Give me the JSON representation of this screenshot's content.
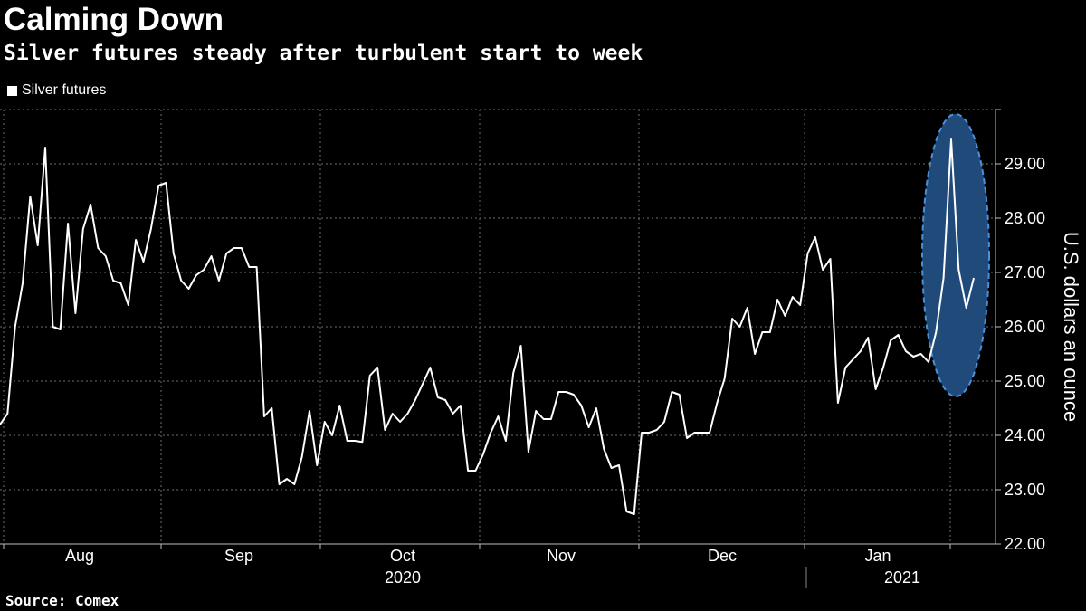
{
  "header": {
    "title": "Calming Down",
    "subtitle": "Silver futures steady after turbulent start to week"
  },
  "legend": {
    "label": "Silver futures",
    "swatch_color": "#ffffff"
  },
  "footer": {
    "source": "Source: Comex"
  },
  "colors": {
    "background": "#000000",
    "line": "#ffffff",
    "grid": "#6e6e6e",
    "highlight_fill": "#1f4a7a",
    "highlight_stroke": "#4a90d9"
  },
  "chart_data": {
    "type": "line",
    "series": [
      {
        "name": "Silver futures",
        "values": [
          24.2,
          24.4,
          26.0,
          26.8,
          28.4,
          27.5,
          29.3,
          26.0,
          25.95,
          27.9,
          26.25,
          27.8,
          28.25,
          27.45,
          27.3,
          26.85,
          26.8,
          26.4,
          27.6,
          27.2,
          27.8,
          28.6,
          28.65,
          27.35,
          26.85,
          26.7,
          26.95,
          27.05,
          27.3,
          26.85,
          27.35,
          27.45,
          27.45,
          27.1,
          27.1,
          24.35,
          24.5,
          23.1,
          23.2,
          23.1,
          23.6,
          24.45,
          23.45,
          24.25,
          24.0,
          24.55,
          23.9,
          23.9,
          23.88,
          25.1,
          25.25,
          24.1,
          24.4,
          24.25,
          24.4,
          24.65,
          24.95,
          25.25,
          24.7,
          24.65,
          24.4,
          24.55,
          23.35,
          23.35,
          23.65,
          24.05,
          24.35,
          23.9,
          25.15,
          25.65,
          23.7,
          24.45,
          24.3,
          24.3,
          24.8,
          24.8,
          24.75,
          24.55,
          24.15,
          24.5,
          23.75,
          23.4,
          23.45,
          22.6,
          22.55,
          24.05,
          24.05,
          24.1,
          24.25,
          24.8,
          24.75,
          23.95,
          24.05,
          24.05,
          24.05,
          24.6,
          25.05,
          26.15,
          26.0,
          26.35,
          25.5,
          25.9,
          25.9,
          26.5,
          26.2,
          26.55,
          26.4,
          27.35,
          27.65,
          27.05,
          27.25,
          24.6,
          25.25,
          25.4,
          25.55,
          25.8,
          24.85,
          25.25,
          25.75,
          25.85,
          25.55,
          25.45,
          25.5,
          25.35,
          25.9,
          26.9,
          29.45,
          27.05,
          26.35,
          26.9
        ]
      }
    ],
    "x_axis": {
      "months": [
        "Aug",
        "Sep",
        "Oct",
        "Nov",
        "Dec",
        "Jan"
      ],
      "years": [
        "2020",
        "2021"
      ]
    },
    "y_axis": {
      "label": "U.S. dollars an ounce",
      "ticks": [
        "22.00",
        "23.00",
        "24.00",
        "25.00",
        "26.00",
        "27.00",
        "28.00",
        "29.00"
      ],
      "ylim": [
        22.0,
        30.0
      ],
      "position": "right"
    },
    "grid": true,
    "legend_position": "top-left",
    "annotation": {
      "type": "ellipse-highlight",
      "covers": "last days of January 2021"
    }
  }
}
